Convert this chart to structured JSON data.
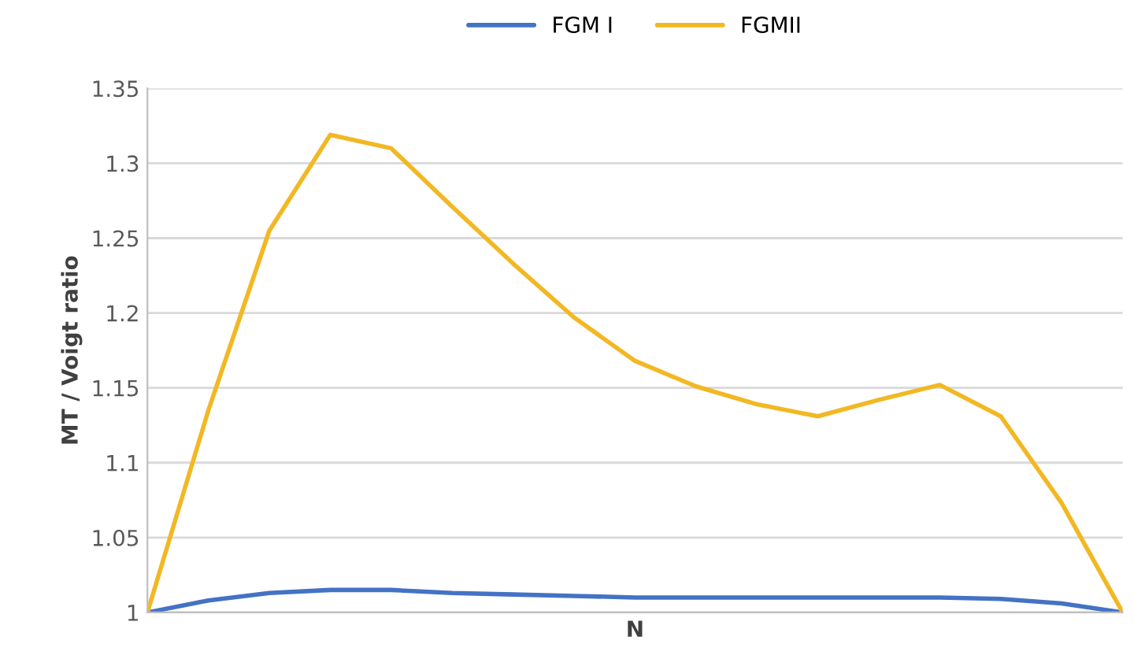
{
  "chart_data": {
    "type": "line",
    "xlabel": "N",
    "ylabel": "MT / Voigt ratio",
    "categories": [
      null,
      null,
      null,
      null,
      null,
      null,
      null,
      null,
      null,
      null,
      null,
      null,
      null,
      null,
      null,
      null,
      null
    ],
    "series": [
      {
        "name": "FGM I",
        "color": "#4472c4",
        "values": [
          1.0,
          1.008,
          1.013,
          1.015,
          1.015,
          1.013,
          1.012,
          1.011,
          1.01,
          1.01,
          1.01,
          1.01,
          1.01,
          1.01,
          1.009,
          1.006,
          1.0
        ]
      },
      {
        "name": "FGMII",
        "color": "#f2b824",
        "values": [
          1.0,
          1.135,
          1.255,
          1.319,
          1.31,
          1.271,
          1.233,
          1.197,
          1.168,
          1.151,
          1.139,
          1.131,
          1.142,
          1.152,
          1.131,
          1.073,
          1.0
        ]
      }
    ],
    "ylim": [
      1,
      1.35
    ],
    "yticks": [
      1,
      1.05,
      1.1,
      1.15,
      1.2,
      1.25,
      1.3,
      1.35
    ],
    "grid": "y",
    "legend": "top",
    "marker": "none",
    "line_style": "solid"
  }
}
